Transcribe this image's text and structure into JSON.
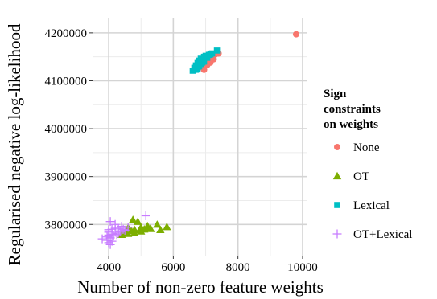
{
  "chart_data": {
    "type": "scatter",
    "xlabel": "Number of non-zero feature weights",
    "ylabel": "Regularised negative log-likelihood",
    "xlim": [
      3500,
      10150
    ],
    "ylim": [
      3735000,
      4230000
    ],
    "x_ticks": [
      4000,
      6000,
      8000,
      10000
    ],
    "x_tick_labels": [
      "4000",
      "6000",
      "8000",
      "10000"
    ],
    "y_ticks": [
      3800000,
      3900000,
      4000000,
      4100000,
      4200000
    ],
    "y_tick_labels": [
      "3800000",
      "3900000",
      "4000000",
      "4100000",
      "4200000"
    ],
    "grid": true,
    "legend": {
      "title_lines": [
        "Sign",
        "constraints",
        "on weights"
      ],
      "placement": "right"
    },
    "series": [
      {
        "name": "None",
        "marker": "circle",
        "color": "#F8766D",
        "points": [
          [
            9800,
            4197000
          ],
          [
            7400,
            4157000
          ],
          [
            7300,
            4155000
          ],
          [
            7200,
            4151000
          ],
          [
            7100,
            4147000
          ],
          [
            7250,
            4145000
          ],
          [
            7000,
            4140000
          ],
          [
            7150,
            4138000
          ],
          [
            6950,
            4136000
          ],
          [
            7050,
            4133000
          ],
          [
            6900,
            4128000
          ],
          [
            6950,
            4123000
          ],
          [
            7200,
            4150000
          ],
          [
            7050,
            4142000
          ]
        ]
      },
      {
        "name": "OT",
        "marker": "triangle",
        "color": "#7CAE00",
        "points": [
          [
            4750,
            3810000
          ],
          [
            4900,
            3806000
          ],
          [
            5500,
            3800000
          ],
          [
            5200,
            3797000
          ],
          [
            5800,
            3795000
          ],
          [
            5000,
            3794000
          ],
          [
            4600,
            3793000
          ],
          [
            5300,
            3791000
          ],
          [
            5100,
            3790000
          ],
          [
            4800,
            3789000
          ],
          [
            5600,
            3789000
          ],
          [
            4700,
            3787000
          ],
          [
            5000,
            3786000
          ],
          [
            4500,
            3784000
          ],
          [
            4800,
            3783000
          ],
          [
            4400,
            3779000
          ],
          [
            4600,
            3781000
          ],
          [
            5200,
            3793000
          ]
        ]
      },
      {
        "name": "Lexical",
        "marker": "square",
        "color": "#00BFC4",
        "points": [
          [
            7350,
            4163000
          ],
          [
            7200,
            4157000
          ],
          [
            7100,
            4154000
          ],
          [
            6950,
            4150000
          ],
          [
            7050,
            4148000
          ],
          [
            6900,
            4145000
          ],
          [
            6800,
            4142000
          ],
          [
            6950,
            4140000
          ],
          [
            6750,
            4137000
          ],
          [
            6850,
            4135000
          ],
          [
            6700,
            4132000
          ],
          [
            6800,
            4130000
          ],
          [
            6650,
            4127000
          ],
          [
            6750,
            4125000
          ],
          [
            6600,
            4121000
          ],
          [
            6700,
            4123000
          ],
          [
            7000,
            4152000
          ],
          [
            6850,
            4146000
          ],
          [
            7150,
            4155000
          ],
          [
            6900,
            4138000
          ]
        ]
      },
      {
        "name": "OT+Lexical",
        "marker": "plus",
        "color": "#C77CFF",
        "points": [
          [
            5150,
            3818000
          ],
          [
            4050,
            3806000
          ],
          [
            4200,
            3800000
          ],
          [
            4400,
            3796000
          ],
          [
            4600,
            3794000
          ],
          [
            4300,
            3792000
          ],
          [
            4100,
            3790000
          ],
          [
            4500,
            3788000
          ],
          [
            4200,
            3786000
          ],
          [
            4000,
            3784000
          ],
          [
            4300,
            3782000
          ],
          [
            4100,
            3780000
          ],
          [
            4000,
            3778000
          ],
          [
            4150,
            3776000
          ],
          [
            3950,
            3774000
          ],
          [
            4050,
            3772000
          ],
          [
            3800,
            3770000
          ],
          [
            3950,
            3767000
          ],
          [
            4100,
            3765000
          ],
          [
            4000,
            3762000
          ],
          [
            4050,
            3758000
          ],
          [
            4200,
            3792000
          ],
          [
            4350,
            3785000
          ],
          [
            4000,
            3789000
          ],
          [
            4250,
            3779000
          ],
          [
            4450,
            3790000
          ]
        ]
      }
    ]
  }
}
